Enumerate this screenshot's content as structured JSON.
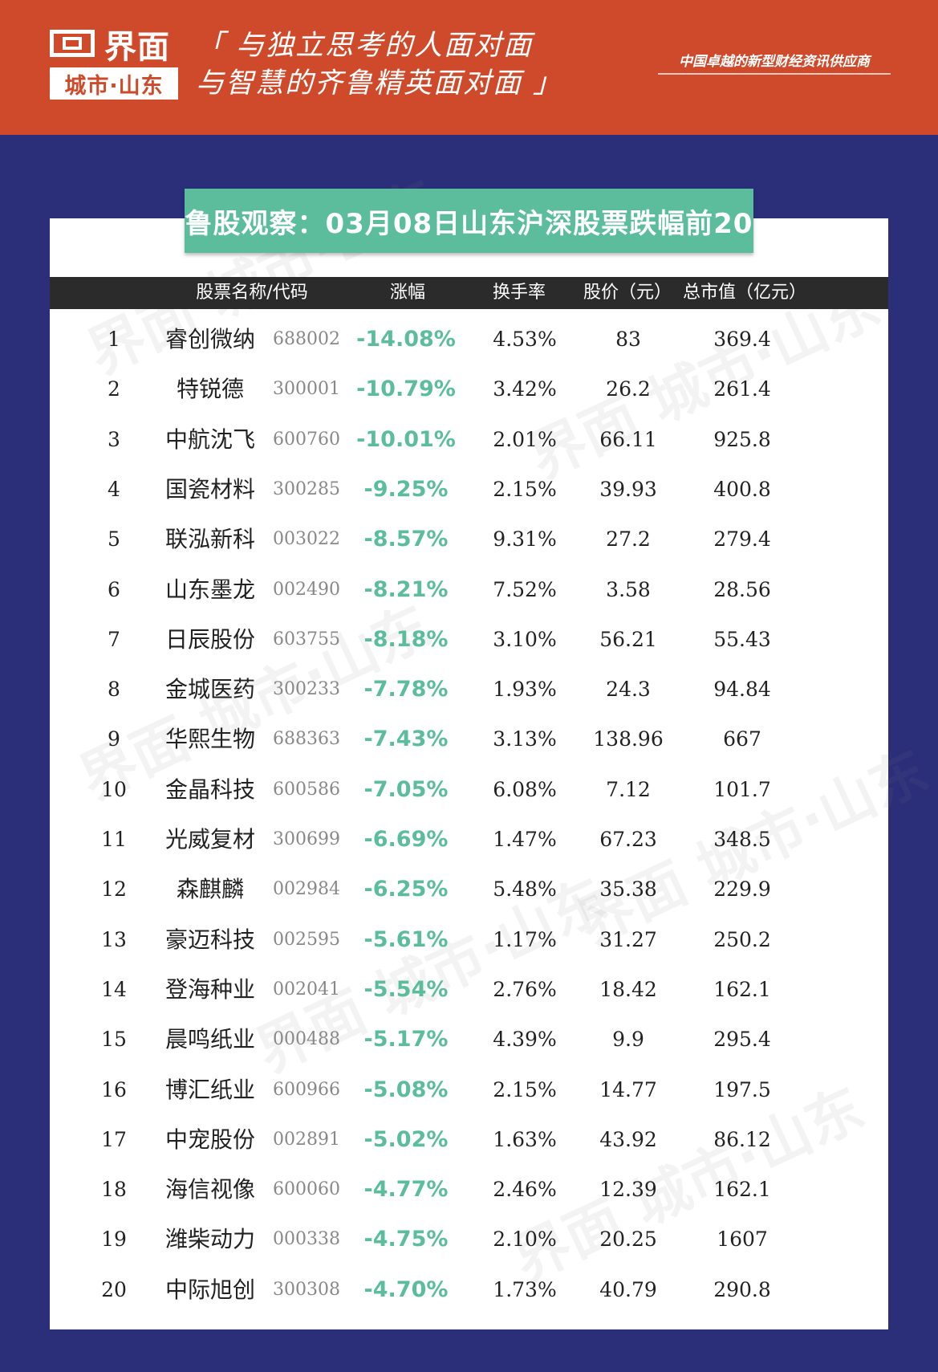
{
  "brand": {
    "name": "界面",
    "city": "城市·山东"
  },
  "slogan": {
    "line1": "「 与独立思考的人面对面",
    "line2": "与智慧的齐鲁精英面对面 」"
  },
  "tagline": "中国卓越的新型财经资讯供应商",
  "title": "鲁股观察：03月08日山东沪深股票跌幅前20",
  "colors": {
    "header": "#cf4a2a",
    "background": "#2b2f7a",
    "accent": "#5bbd9c"
  },
  "columns": {
    "name_code": "股票名称/代码",
    "change": "涨幅",
    "turnover": "换手率",
    "price": "股价（元）",
    "market_cap": "总市值（亿元）"
  },
  "rows": [
    {
      "rank": "1",
      "name": "睿创微纳",
      "code": "688002",
      "change": "-14.08%",
      "turnover": "4.53%",
      "price": "83",
      "cap": "369.4"
    },
    {
      "rank": "2",
      "name": "特锐德",
      "code": "300001",
      "change": "-10.79%",
      "turnover": "3.42%",
      "price": "26.2",
      "cap": "261.4"
    },
    {
      "rank": "3",
      "name": "中航沈飞",
      "code": "600760",
      "change": "-10.01%",
      "turnover": "2.01%",
      "price": "66.11",
      "cap": "925.8"
    },
    {
      "rank": "4",
      "name": "国瓷材料",
      "code": "300285",
      "change": "-9.25%",
      "turnover": "2.15%",
      "price": "39.93",
      "cap": "400.8"
    },
    {
      "rank": "5",
      "name": "联泓新科",
      "code": "003022",
      "change": "-8.57%",
      "turnover": "9.31%",
      "price": "27.2",
      "cap": "279.4"
    },
    {
      "rank": "6",
      "name": "山东墨龙",
      "code": "002490",
      "change": "-8.21%",
      "turnover": "7.52%",
      "price": "3.58",
      "cap": "28.56"
    },
    {
      "rank": "7",
      "name": "日辰股份",
      "code": "603755",
      "change": "-8.18%",
      "turnover": "3.10%",
      "price": "56.21",
      "cap": "55.43"
    },
    {
      "rank": "8",
      "name": "金城医药",
      "code": "300233",
      "change": "-7.78%",
      "turnover": "1.93%",
      "price": "24.3",
      "cap": "94.84"
    },
    {
      "rank": "9",
      "name": "华熙生物",
      "code": "688363",
      "change": "-7.43%",
      "turnover": "3.13%",
      "price": "138.96",
      "cap": "667"
    },
    {
      "rank": "10",
      "name": "金晶科技",
      "code": "600586",
      "change": "-7.05%",
      "turnover": "6.08%",
      "price": "7.12",
      "cap": "101.7"
    },
    {
      "rank": "11",
      "name": "光威复材",
      "code": "300699",
      "change": "-6.69%",
      "turnover": "1.47%",
      "price": "67.23",
      "cap": "348.5"
    },
    {
      "rank": "12",
      "name": "森麒麟",
      "code": "002984",
      "change": "-6.25%",
      "turnover": "5.48%",
      "price": "35.38",
      "cap": "229.9"
    },
    {
      "rank": "13",
      "name": "豪迈科技",
      "code": "002595",
      "change": "-5.61%",
      "turnover": "1.17%",
      "price": "31.27",
      "cap": "250.2"
    },
    {
      "rank": "14",
      "name": "登海种业",
      "code": "002041",
      "change": "-5.54%",
      "turnover": "2.76%",
      "price": "18.42",
      "cap": "162.1"
    },
    {
      "rank": "15",
      "name": "晨鸣纸业",
      "code": "000488",
      "change": "-5.17%",
      "turnover": "4.39%",
      "price": "9.9",
      "cap": "295.4"
    },
    {
      "rank": "16",
      "name": "博汇纸业",
      "code": "600966",
      "change": "-5.08%",
      "turnover": "2.15%",
      "price": "14.77",
      "cap": "197.5"
    },
    {
      "rank": "17",
      "name": "中宠股份",
      "code": "002891",
      "change": "-5.02%",
      "turnover": "1.63%",
      "price": "43.92",
      "cap": "86.12"
    },
    {
      "rank": "18",
      "name": "海信视像",
      "code": "600060",
      "change": "-4.77%",
      "turnover": "2.46%",
      "price": "12.39",
      "cap": "162.1"
    },
    {
      "rank": "19",
      "name": "潍柴动力",
      "code": "000338",
      "change": "-4.75%",
      "turnover": "2.10%",
      "price": "20.25",
      "cap": "1607"
    },
    {
      "rank": "20",
      "name": "中际旭创",
      "code": "300308",
      "change": "-4.70%",
      "turnover": "1.73%",
      "price": "40.79",
      "cap": "290.8"
    }
  ]
}
